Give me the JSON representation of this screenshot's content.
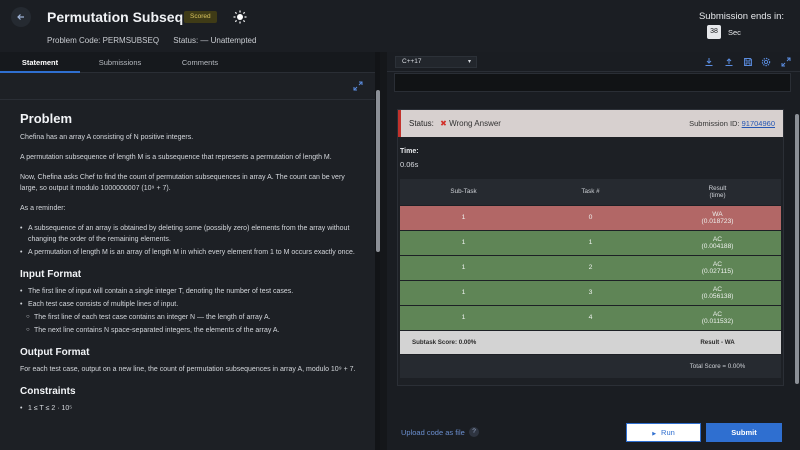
{
  "header": {
    "back_icon": "arrow-left-icon",
    "title": "Permutation Subseque…",
    "badge": "Scored",
    "theme_icon": "sun-icon",
    "problem_code": "Problem Code: PERMSUBSEQ",
    "status": "Status:  —  Unattempted",
    "submission_ends_label": "Submission ends in:",
    "timer_value": "38",
    "timer_unit": "Sec"
  },
  "tabs": [
    {
      "label": "Statement",
      "active": true
    },
    {
      "label": "Submissions",
      "active": false
    },
    {
      "label": "Comments",
      "active": false
    }
  ],
  "statement": {
    "title": "Problem",
    "p1": "Chefina has an array A consisting of N positive integers.",
    "p2": "A permutation subsequence of length M is a subsequence that represents a permutation of length M.",
    "p3": "Now, Chefina asks Chef to find the count of permutation subsequences in array A. The count can be very large, so output it modulo 1000000007 (10⁹ + 7).",
    "p4": "As a reminder:",
    "reminder": [
      "A subsequence of an array is obtained by deleting some (possibly zero) elements from the array without changing the order of the remaining elements.",
      "A permutation of length M is an array of length M in which every element from 1 to M occurs exactly once."
    ],
    "input_title": "Input Format",
    "input_items": [
      "The first line of input will contain a single integer T, denoting the number of test cases.",
      "Each test case consists of multiple lines of input."
    ],
    "input_sub_items": [
      "The first line of each test case contains an integer N — the length of array A.",
      "The next line contains N space-separated integers, the elements of the array A."
    ],
    "output_title": "Output Format",
    "output_text": "For each test case, output on a new line, the count of permutation subsequences in array A, modulo 10⁹ + 7.",
    "constraints_title": "Constraints",
    "constraint1": "1 ≤ T ≤ 2 · 10⁵"
  },
  "editor": {
    "language": "C++17",
    "toolbar_icons": [
      "download-icon",
      "upload-icon",
      "save-icon",
      "settings-icon",
      "expand-icon"
    ]
  },
  "result": {
    "status_label": "Status:",
    "status_value": "Wrong Answer",
    "submission_id_label": "Submission ID:",
    "submission_id": "91704960",
    "time_label": "Time:",
    "time_value": "0.06s",
    "columns": [
      "Sub-Task",
      "Task #",
      "Result\n(time)"
    ],
    "rows": [
      {
        "subtask": "1",
        "task": "0",
        "result": "WA",
        "time": "(0.018723)",
        "status": "wa"
      },
      {
        "subtask": "1",
        "task": "1",
        "result": "AC",
        "time": "(0.004188)",
        "status": "ac"
      },
      {
        "subtask": "1",
        "task": "2",
        "result": "AC",
        "time": "(0.027115)",
        "status": "ac"
      },
      {
        "subtask": "1",
        "task": "3",
        "result": "AC",
        "time": "(0.056138)",
        "status": "ac"
      },
      {
        "subtask": "1",
        "task": "4",
        "result": "AC",
        "time": "(0.011532)",
        "status": "ac"
      }
    ],
    "subtask_score": "Subtask Score: 0.00%",
    "result_summary": "Result - WA",
    "total_score": "Total Score = 0.00%"
  },
  "footer": {
    "upload_label": "Upload code as file",
    "help_icon": "question-icon",
    "run_label": "Run",
    "submit_label": "Submit"
  },
  "colors": {
    "accent": "#2f6fd0",
    "wa_row": "#b26766",
    "ac_row": "#5f8556",
    "status_error": "#c2322c"
  }
}
